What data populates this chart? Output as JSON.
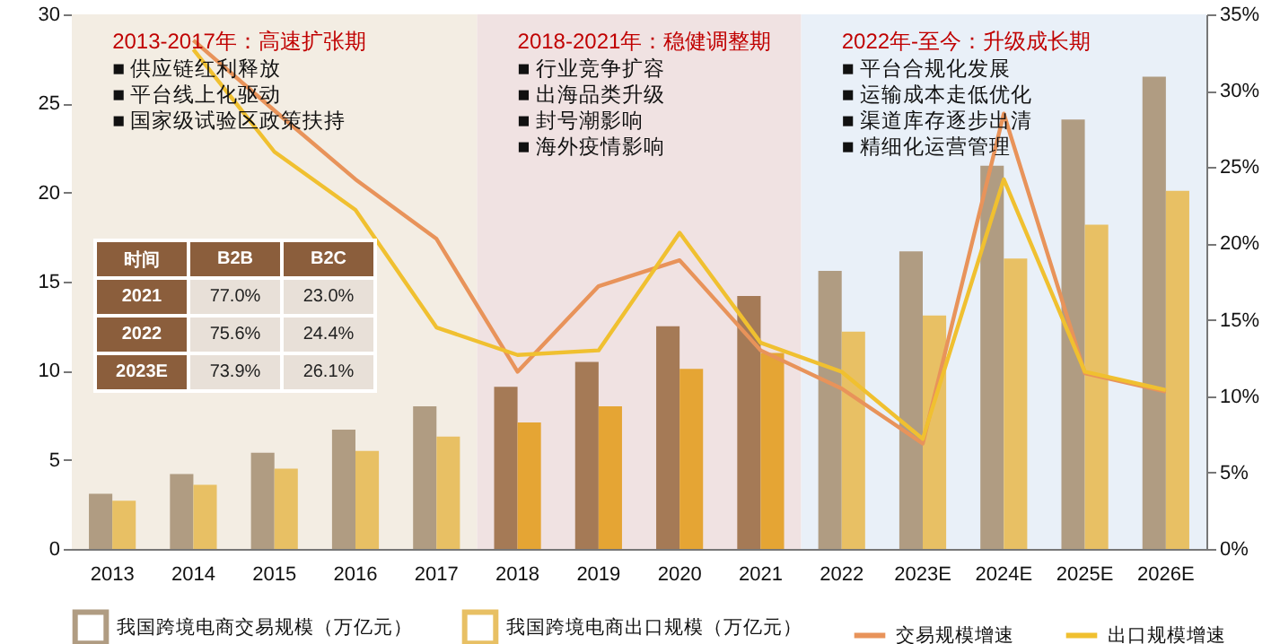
{
  "chart_data": {
    "type": "bar",
    "categories": [
      "2013",
      "2014",
      "2015",
      "2016",
      "2017",
      "2018",
      "2019",
      "2020",
      "2021",
      "2022",
      "2023E",
      "2024E",
      "2025E",
      "2026E"
    ],
    "series": [
      {
        "name": "我国跨境电商交易规模（万亿元）",
        "color": "#b09c82",
        "colors": [
          "#b09c82",
          "#b09c82",
          "#b09c82",
          "#b09c82",
          "#b09c82",
          "#a57a56",
          "#a57a56",
          "#a57a56",
          "#a57a56",
          "#b09c82",
          "#b09c82",
          "#b09c82",
          "#b09c82",
          "#b09c82"
        ],
        "values": [
          3.1,
          4.2,
          5.4,
          6.7,
          8.0,
          9.1,
          10.5,
          12.5,
          14.2,
          15.6,
          16.7,
          21.5,
          24.1,
          26.5
        ]
      },
      {
        "name": "我国跨境电商出口规模（万亿元）",
        "color": "#e8c064",
        "colors": [
          "#e8c064",
          "#e8c064",
          "#e8c064",
          "#e8c064",
          "#e8c064",
          "#e5a534",
          "#e5a534",
          "#e5a534",
          "#e5a534",
          "#e8c064",
          "#e8c064",
          "#e8c064",
          "#e8c064",
          "#e8c064"
        ],
        "values": [
          2.7,
          3.6,
          4.5,
          5.5,
          6.3,
          7.1,
          8.0,
          10.1,
          11.0,
          12.2,
          13.1,
          16.3,
          18.2,
          20.1
        ]
      },
      {
        "name": "交易规模增速",
        "type": "line",
        "axis": "y2",
        "color": "#e8935a",
        "values": [
          null,
          33.3,
          28.7,
          24.2,
          20.3,
          11.6,
          17.2,
          18.9,
          13.0,
          10.5,
          6.9,
          28.5,
          11.5,
          10.3
        ]
      },
      {
        "name": "出口规模增速",
        "type": "line",
        "axis": "y2",
        "color": "#f0c030",
        "values": [
          null,
          32.7,
          26.0,
          22.2,
          14.5,
          12.7,
          13.0,
          20.7,
          13.5,
          11.6,
          7.2,
          24.2,
          11.6,
          10.4
        ]
      }
    ],
    "ylim": [
      0,
      30
    ],
    "yticks": [
      0,
      5,
      10,
      15,
      20,
      25,
      30
    ],
    "y2lim": [
      0,
      35
    ],
    "y2ticks": [
      {
        "value": 0,
        "label": "0%"
      },
      {
        "value": 5,
        "label": "5%"
      },
      {
        "value": 10,
        "label": "10%"
      },
      {
        "value": 15,
        "label": "15%"
      },
      {
        "value": 20,
        "label": "20%"
      },
      {
        "value": 25,
        "label": "25%"
      },
      {
        "value": 30,
        "label": "30%"
      },
      {
        "value": 35,
        "label": "35%"
      }
    ],
    "bands": [
      {
        "axis": "x",
        "from": "2013",
        "to": "2017",
        "label": "2013-2017年：高速扩张期",
        "color": "#f3ede3"
      },
      {
        "axis": "x",
        "from": "2018",
        "to": "2021",
        "label": "2018-2021年：稳健调整期",
        "color": "#f0e2e2"
      },
      {
        "axis": "x",
        "from": "2022",
        "to": "2026E",
        "label": "2022年-至今：升级成长期",
        "color": "#e9f0f8"
      }
    ],
    "annotations": [
      "■  供应链红利释放",
      "■  平台线上化驱动",
      "■  国家级试验区政策扶持",
      "■  行业竞争扩容",
      "■  出海品类升级",
      "■  封号潮影响",
      "■  海外疫情影响",
      "■  平台合规化发展",
      "■  运输成本走低优化",
      "■  渠道库存逐步出清",
      "■  精细化运营管理",
      "时间",
      "B2B",
      "B2C",
      "2021",
      "77.0%",
      "23.0%",
      "2022",
      "75.6%",
      "24.4%",
      "2023E",
      "73.9%",
      "26.1%"
    ],
    "legend": "bottom",
    "grid": false
  }
}
